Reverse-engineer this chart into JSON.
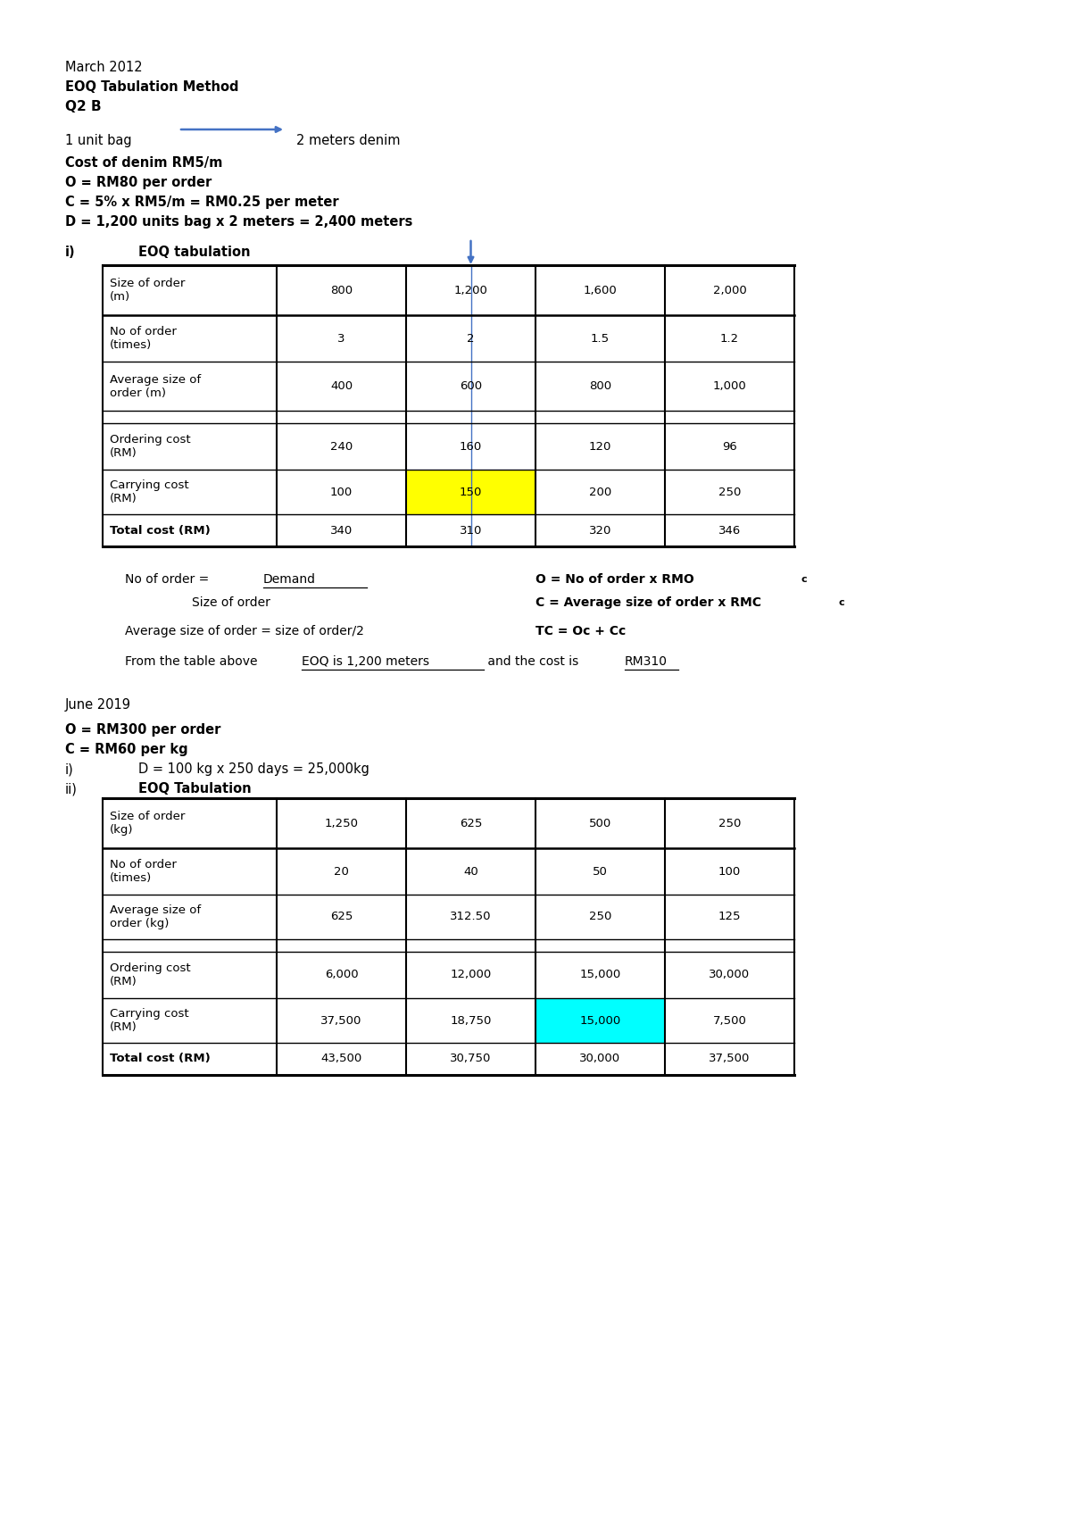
{
  "title_lines": [
    "March 2012",
    "EOQ Tabulation Method",
    "Q2 B"
  ],
  "arrow_color": "#4472C4",
  "bg_color": "#FFFFFF",
  "table1_headers": [
    "Size of order\n(m)",
    "800",
    "1,200",
    "1,600",
    "2,000"
  ],
  "table1_rows": [
    [
      "No of order\n(times)",
      "3",
      "2",
      "1.5",
      "1.2"
    ],
    [
      "Average size of\norder (m)",
      "400",
      "600",
      "800",
      "1,000"
    ],
    [
      "",
      "",
      "",
      "",
      ""
    ],
    [
      "Ordering cost\n(RM)",
      "240",
      "160",
      "120",
      "96"
    ],
    [
      "Carrying cost\n(RM)",
      "100",
      "150",
      "200",
      "250"
    ],
    [
      "Total cost (RM)",
      "340",
      "310",
      "320",
      "346"
    ]
  ],
  "table1_highlight_col": 2,
  "table1_highlight_row": 6,
  "table1_highlight_color": "#FFFF00",
  "table2_headers": [
    "Size of order\n(kg)",
    "1,250",
    "625",
    "500",
    "250"
  ],
  "table2_rows": [
    [
      "No of order\n(times)",
      "20",
      "40",
      "50",
      "100"
    ],
    [
      "Average size of\norder (kg)",
      "625",
      "312.50",
      "250",
      "125"
    ],
    [
      "",
      "",
      "",
      "",
      ""
    ],
    [
      "Ordering cost\n(RM)",
      "6,000",
      "12,000",
      "15,000",
      "30,000"
    ],
    [
      "Carrying cost\n(RM)",
      "37,500",
      "18,750",
      "15,000",
      "7,500"
    ],
    [
      "Total cost (RM)",
      "43,500",
      "30,750",
      "30,000",
      "37,500"
    ]
  ],
  "table2_highlight_col": 3,
  "table2_highlight_row": 6,
  "table2_highlight_color": "#00FFFF"
}
